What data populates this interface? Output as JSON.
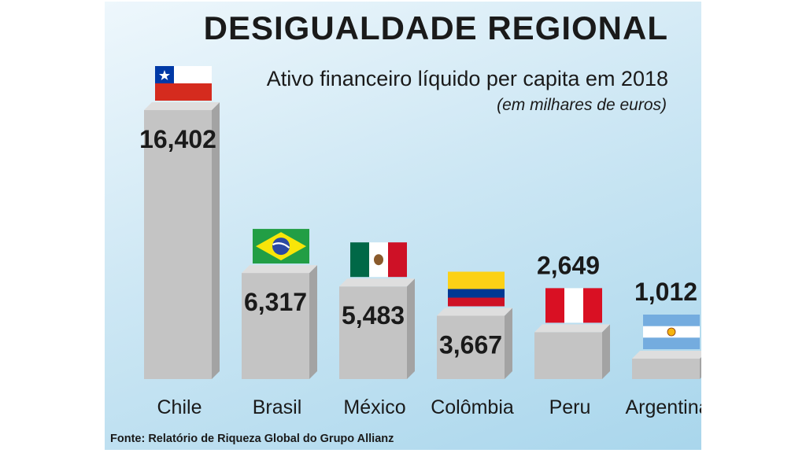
{
  "chart_data": {
    "type": "bar",
    "title": "DESIGUALDADE REGIONAL",
    "subtitle": "Ativo financeiro líquido per capita em 2018",
    "unit_note": "(em milhares de euros)",
    "categories": [
      "Chile",
      "Brasil",
      "México",
      "Colômbia",
      "Peru",
      "Argentina"
    ],
    "values": [
      16.402,
      6.317,
      5.483,
      3.667,
      2.649,
      1.012
    ],
    "value_labels": [
      "16,402",
      "6,317",
      "5,483",
      "3,667",
      "2,649",
      "1,012"
    ],
    "flags": [
      "flag-chile-icon",
      "flag-brazil-icon",
      "flag-mexico-icon",
      "flag-colombia-icon",
      "flag-peru-icon",
      "flag-argentina-icon"
    ],
    "source": "Fonte: Relatório de Riqueza Global do Grupo Allianz",
    "colors": {
      "bar_front": "#c4c4c4",
      "bar_side": "#a3a3a3",
      "bar_top": "#dedede",
      "background": "#cde7f4"
    }
  }
}
